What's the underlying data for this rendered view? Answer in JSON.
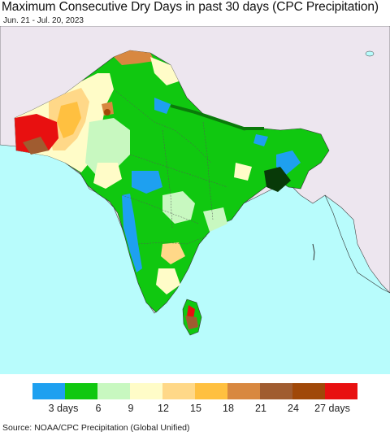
{
  "header": {
    "title": "Maximum Consecutive Dry Days in past 30 days (CPC Precipitation)",
    "date_range": "Jun. 21 - Jul. 20, 2023"
  },
  "legend": {
    "colors": [
      "#1ea0f0",
      "#10c810",
      "#c8f8c0",
      "#fffcc8",
      "#ffd888",
      "#ffc040",
      "#d88840",
      "#a05c30",
      "#a04808",
      "#e81010"
    ],
    "labels": [
      "3 days",
      "6",
      "9",
      "12",
      "15",
      "18",
      "21",
      "24",
      "27 days"
    ]
  },
  "source": "Source: NOAA/CPC Precipitation (Global Unified)"
}
